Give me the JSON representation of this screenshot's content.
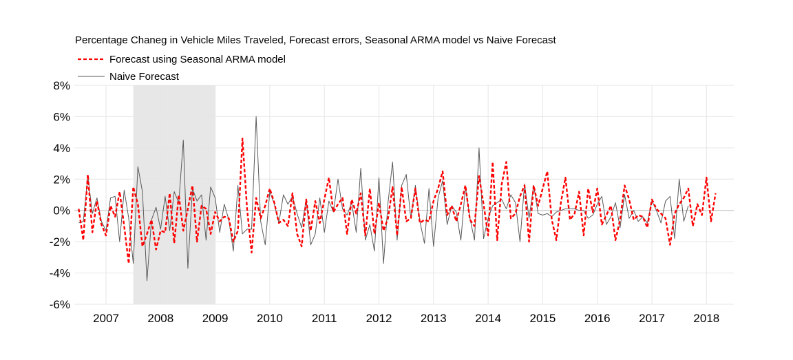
{
  "chart_data": {
    "type": "line",
    "title": "Percentage Chaneg in Vehicle Miles Traveled, Forecast errors, Seasonal ARMA model vs Naive Forecast",
    "xlabel": "",
    "ylabel": "",
    "ylim": [
      -6,
      8
    ],
    "y_ticks": [
      "8%",
      "6%",
      "4%",
      "2%",
      "0%",
      "-2%",
      "-4%",
      "-6%"
    ],
    "y_tick_values": [
      8,
      6,
      4,
      2,
      0,
      -2,
      -4,
      -6
    ],
    "x_range": [
      2006.42,
      2018.5
    ],
    "year_labels": [
      "2007",
      "2008",
      "2009",
      "2010",
      "2011",
      "2012",
      "2013",
      "2014",
      "2015",
      "2016",
      "2017",
      "2018"
    ],
    "recession_shading": {
      "start": 2007.5,
      "end": 2009.0,
      "color": "#e7e7e7"
    },
    "grid": true,
    "legend_placement": "top-left",
    "series": [
      {
        "name": "Forecast using Seasonal ARMA model",
        "color": "#ff0000",
        "style": "dashed",
        "start": 2006.5,
        "step": 0.08333,
        "values": [
          0.1,
          -1.9,
          2.3,
          -1.4,
          0.6,
          -0.9,
          -1.6,
          0.3,
          -0.4,
          1.2,
          -1.0,
          -3.4,
          1.5,
          0.4,
          -2.3,
          -1.5,
          -0.6,
          -2.5,
          -1.3,
          -1.4,
          1.1,
          -2.1,
          1.0,
          -1.3,
          0.1,
          1.6,
          -2.0,
          0.3,
          0.1,
          -1.5,
          -0.1,
          -0.7,
          -0.4,
          -0.5,
          -2.0,
          -1.3,
          4.6,
          0.1,
          -2.7,
          0.8,
          -0.5,
          0.3,
          1.4,
          0.5,
          -0.8,
          -0.6,
          -1.0,
          1.1,
          -1.5,
          -2.3,
          0.7,
          -1.3,
          0.6,
          -0.8,
          0.7,
          2.1,
          -0.1,
          0.4,
          0.8,
          -1.5,
          0.7,
          -0.2,
          1.1,
          -1.6,
          1.4,
          -1.5,
          0.5,
          -1.3,
          -0.5,
          1.5,
          -1.6,
          1.5,
          -0.7,
          -0.5,
          1.4,
          -0.8,
          -0.6,
          -0.7,
          0.6,
          1.4,
          2.5,
          -0.3,
          0.3,
          -0.7,
          0.4,
          1.6,
          -0.6,
          -1.0,
          2.2,
          0.4,
          -1.6,
          3.1,
          -1.9,
          1.7,
          3.1,
          -0.5,
          -0.2,
          0.9,
          1.6,
          -2.0,
          1.6,
          0.3,
          1.4,
          2.5,
          -0.6,
          -1.9,
          0.5,
          2.1,
          -0.6,
          -0.2,
          1.2,
          -1.6,
          1.4,
          -0.1,
          1.4,
          -0.9,
          -0.3,
          0.3,
          -1.9,
          -0.6,
          1.6,
          0.7,
          -0.6,
          -0.3,
          -0.4,
          -1.1,
          0.7,
          0.1,
          -0.2,
          -0.5,
          -2.2,
          -0.2,
          0.4,
          0.8,
          1.4,
          -1.0,
          0.4,
          -0.3,
          2.1,
          -0.7,
          1.1
        ]
      },
      {
        "name": "Naive Forecast",
        "color": "#595959",
        "style": "solid",
        "start": 2006.5,
        "step": 0.08333,
        "values": [
          -0.8,
          -0.7,
          2.2,
          -0.2,
          0.8,
          -0.7,
          -1.3,
          0.8,
          0.9,
          -2.0,
          1.3,
          -0.5,
          -3.4,
          2.8,
          1.2,
          -4.5,
          -0.6,
          0.2,
          -1.2,
          0.9,
          -1.3,
          1.2,
          0.5,
          4.5,
          -3.7,
          1.4,
          0.6,
          1.0,
          -1.9,
          1.5,
          0.8,
          -1.4,
          0.4,
          -0.6,
          -2.6,
          1.6,
          -1.5,
          -1.2,
          -1.2,
          6.0,
          -0.7,
          -2.2,
          1.2,
          0.4,
          -0.8,
          1.0,
          0.4,
          0.9,
          -0.2,
          -1.1,
          0.7,
          -2.2,
          -1.5,
          0.8,
          -1.4,
          0.6,
          -0.1,
          2.0,
          0.1,
          -0.3,
          0.5,
          -1.4,
          2.7,
          -1.9,
          -0.9,
          -2.6,
          2.1,
          -3.4,
          0.5,
          3.1,
          -1.9,
          1.6,
          2.3,
          -0.5,
          1.6,
          -0.7,
          -2.1,
          1.4,
          -2.3,
          0.8,
          1.9,
          -0.9,
          0.3,
          -0.1,
          -1.9,
          1.5,
          -0.5,
          -1.9,
          4.0,
          -1.8,
          -0.5,
          0.3,
          0.5,
          0.7,
          0.1,
          1.0,
          0.5,
          -2.0,
          1.7,
          -0.5,
          1.6,
          -0.2,
          -0.3,
          -0.2,
          -0.4,
          -0.1,
          0.0,
          0.1,
          0.1,
          0.1,
          0.0,
          0.0,
          -0.5,
          -0.3,
          0.4,
          0.9,
          -0.9,
          -0.4,
          0.5,
          -1.1,
          1.0,
          -0.5,
          0.0,
          -0.7,
          -0.4,
          -0.8,
          0.6,
          0.0,
          -0.8,
          0.6,
          0.9,
          -1.8,
          2.0,
          -0.7,
          0.3
        ]
      }
    ]
  }
}
